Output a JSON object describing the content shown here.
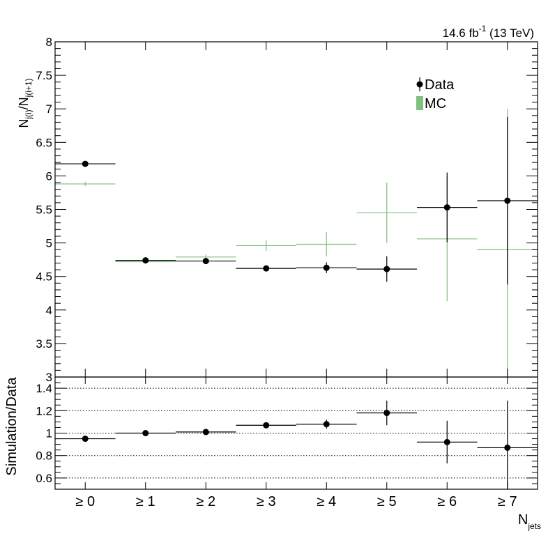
{
  "header": {
    "lumi_value": "14.6 fb",
    "lumi_exp": "-1",
    "energy": " (13 TeV)"
  },
  "chart_data": {
    "type": "scatter",
    "categories": [
      "≥ 0",
      "≥ 1",
      "≥ 2",
      "≥ 3",
      "≥ 4",
      "≥ 5",
      "≥ 6",
      "≥ 7"
    ],
    "xlabel": {
      "main": "N",
      "sub": "jets"
    },
    "top_panel": {
      "ylabel": {
        "main": "N",
        "sub1": "j(i)",
        "mid": "/N",
        "sub2": "j(i+1)"
      },
      "ylim": [
        3,
        8
      ],
      "yticks": [
        "3",
        "3.5",
        "4",
        "4.5",
        "5",
        "5.5",
        "6",
        "6.5",
        "7",
        "7.5",
        "8"
      ],
      "series": [
        {
          "name": "Data",
          "color": "#000000",
          "values": [
            6.18,
            4.74,
            4.73,
            4.62,
            4.63,
            4.61,
            5.53,
            5.63
          ],
          "errors": [
            0.03,
            0.03,
            0.04,
            0.04,
            0.08,
            0.19,
            0.52,
            1.25
          ]
        },
        {
          "name": "MC",
          "color": "#7fbf7f",
          "values": [
            5.88,
            4.72,
            4.79,
            4.96,
            4.98,
            5.45,
            5.06,
            4.9
          ],
          "errors": [
            0.03,
            0.03,
            0.04,
            0.08,
            0.18,
            0.45,
            0.93,
            2.1
          ]
        }
      ],
      "legend": {
        "position": "top-right",
        "entries": [
          "Data",
          "MC"
        ]
      }
    },
    "ratio_panel": {
      "ylabel": "Simulation/Data",
      "ylim": [
        0.5,
        1.5
      ],
      "yticks": [
        "0.6",
        "0.8",
        "1",
        "1.2",
        "1.4"
      ],
      "grid": [
        0.6,
        0.8,
        1.0,
        1.2,
        1.4
      ],
      "values": [
        0.95,
        1.0,
        1.01,
        1.07,
        1.08,
        1.18,
        0.92,
        0.87
      ],
      "errors": [
        0.01,
        0.01,
        0.01,
        0.02,
        0.04,
        0.11,
        0.19,
        0.42
      ]
    }
  }
}
